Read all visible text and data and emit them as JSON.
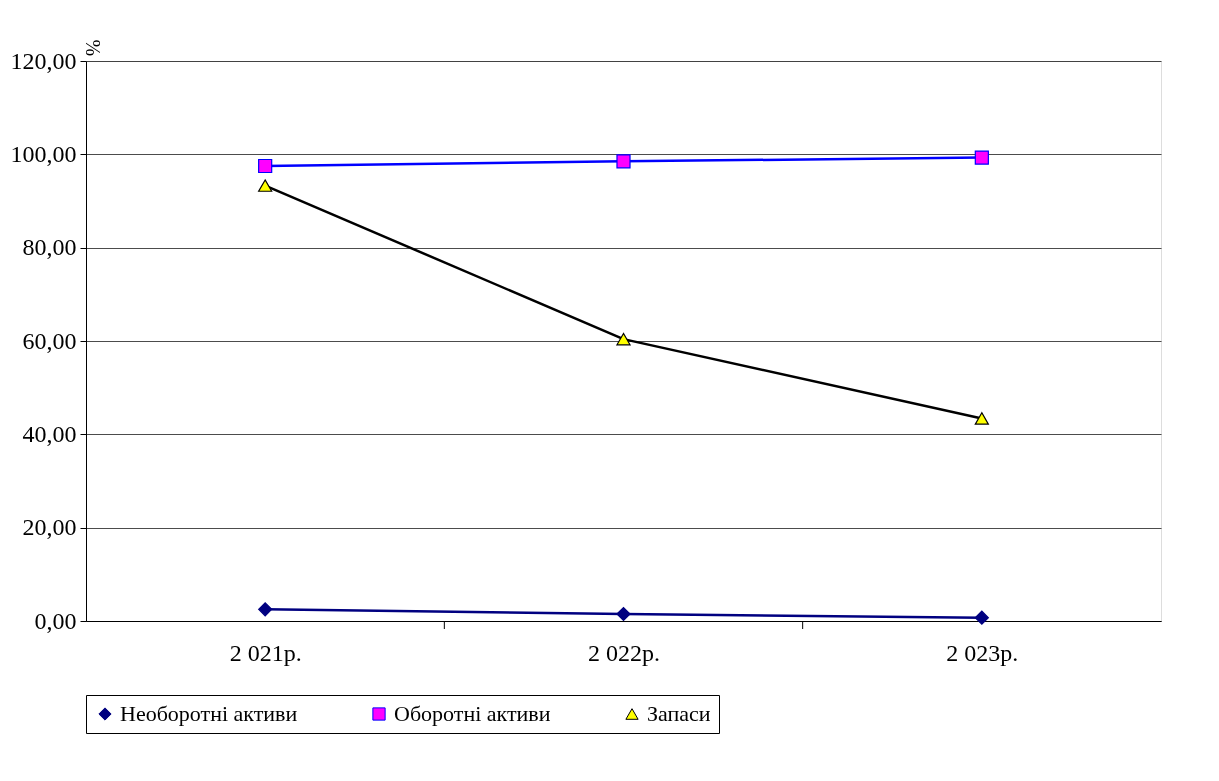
{
  "chart_data": {
    "type": "line",
    "ylabel": "%",
    "categories": [
      "2 021р.",
      "2 022р.",
      "2 023р."
    ],
    "series": [
      {
        "name": "Необоротні активи",
        "color": "#000080",
        "marker": "diamond",
        "colors": [
          "#000080",
          "#000080",
          "#000080"
        ],
        "values": [
          2.5,
          1.5,
          0.7
        ]
      },
      {
        "name": "Оборотні активи",
        "color": "#0000ff",
        "marker": "square",
        "colors": [
          "#ff00ff",
          "#ff00ff",
          "#ff00ff"
        ],
        "values": [
          97.5,
          98.5,
          99.3
        ]
      },
      {
        "name": "Запаси",
        "color": "#000000",
        "marker": "triangle",
        "colors": [
          "#ffff00",
          "#ffff00",
          "#ffff00"
        ],
        "values": [
          93.3,
          60.4,
          43.4
        ]
      }
    ],
    "ylim": [
      0,
      120
    ],
    "yticks": [
      {
        "value": 0,
        "label": "0,00"
      },
      {
        "value": 20,
        "label": "20,00"
      },
      {
        "value": 40,
        "label": "40,00"
      },
      {
        "value": 60,
        "label": "60,00"
      },
      {
        "value": 80,
        "label": "80,00"
      },
      {
        "value": 100,
        "label": "100,00"
      },
      {
        "value": 120,
        "label": "120,00"
      }
    ],
    "grid": "y",
    "legend": "bottom",
    "line_style": "solid"
  }
}
